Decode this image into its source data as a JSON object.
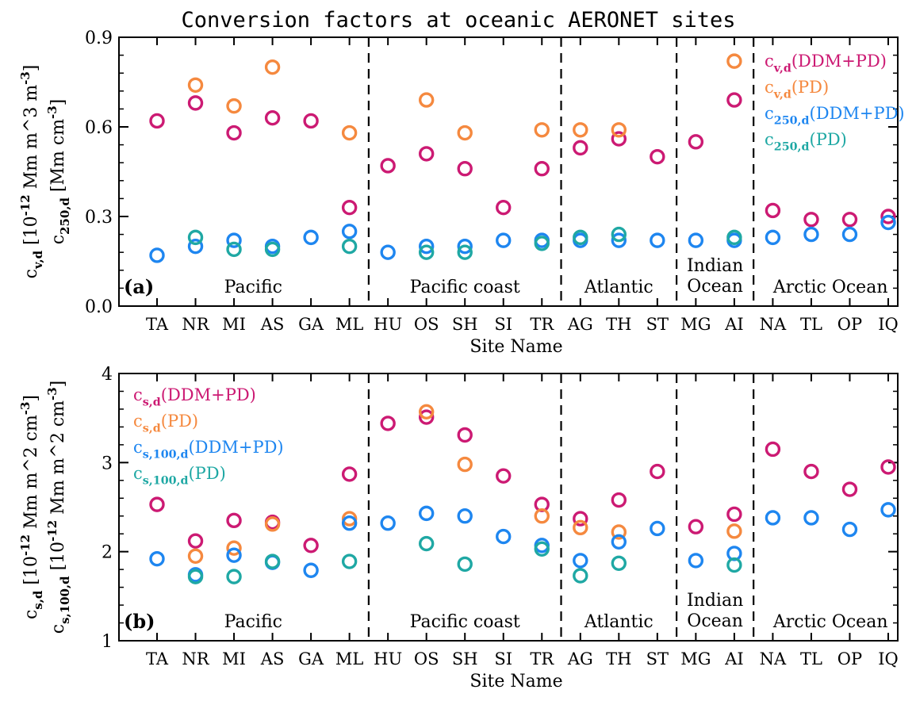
{
  "title": "Conversion factors at oceanic AERONET sites",
  "colors": {
    "ddm_pd": "#cc1a73",
    "pd": "#f5893f",
    "c250_ddm_pd": "#1e86f0",
    "c250_pd": "#1fa8a4",
    "axis": "#000000"
  },
  "chart_data": [
    {
      "type": "scatter",
      "panel_label": "(a)",
      "xlabel": "Site Name",
      "ylabel_outer": "c_{v,d} [10^{-12} Mm m^3 m^{-3}]",
      "ylabel_inner": "c_{250,d} [Mm cm^{-3}]",
      "ylim": [
        0.0,
        0.9
      ],
      "yticks": [
        0.0,
        0.3,
        0.6,
        0.9
      ],
      "ytick_labels": [
        "0.0",
        "0.3",
        "0.6",
        "0.9"
      ],
      "sites": [
        "TA",
        "NR",
        "MI",
        "AS",
        "GA",
        "ML",
        "HU",
        "OS",
        "SH",
        "SI",
        "TR",
        "AG",
        "TH",
        "ST",
        "MG",
        "AI",
        "NA",
        "TL",
        "OP",
        "IQ"
      ],
      "regions": [
        {
          "name": "Pacific",
          "start": 0,
          "end": 5
        },
        {
          "name": "Pacific coast",
          "start": 6,
          "end": 10
        },
        {
          "name": "Atlantic",
          "start": 11,
          "end": 13
        },
        {
          "name": "Indian\nOcean",
          "start": 14,
          "end": 15
        },
        {
          "name": "Arctic Ocean",
          "start": 16,
          "end": 19
        }
      ],
      "legend_position": "top-right",
      "series": [
        {
          "name": "c_{v,d}(DDM+PD)",
          "color_key": "ddm_pd",
          "values": [
            0.62,
            0.68,
            0.58,
            0.63,
            0.62,
            0.33,
            0.47,
            0.51,
            0.46,
            0.33,
            0.46,
            0.53,
            0.56,
            0.5,
            0.55,
            0.69,
            0.32,
            0.29,
            0.29,
            0.3
          ]
        },
        {
          "name": "c_{v,d}(PD)",
          "color_key": "pd",
          "values": [
            null,
            0.74,
            0.67,
            0.8,
            null,
            0.58,
            null,
            0.69,
            0.58,
            null,
            0.59,
            0.59,
            0.59,
            null,
            null,
            0.82,
            null,
            null,
            null,
            null
          ]
        },
        {
          "name": "c_{250,d}(DDM+PD)",
          "color_key": "c250_ddm_pd",
          "values": [
            0.17,
            0.2,
            0.22,
            0.2,
            0.23,
            0.25,
            0.18,
            0.2,
            0.2,
            0.22,
            0.22,
            0.22,
            0.22,
            0.22,
            0.22,
            0.22,
            0.23,
            0.24,
            0.24,
            0.28
          ]
        },
        {
          "name": "c_{250,d}(PD)",
          "color_key": "c250_pd",
          "values": [
            null,
            0.23,
            0.19,
            0.19,
            null,
            0.2,
            null,
            0.18,
            0.18,
            null,
            0.21,
            0.23,
            0.24,
            null,
            null,
            0.23,
            null,
            null,
            null,
            null
          ]
        }
      ]
    },
    {
      "type": "scatter",
      "panel_label": "(b)",
      "xlabel": "Site Name",
      "ylabel_outer": "c_{s,d} [10^{-12} Mm m^2 cm^{-3}]",
      "ylabel_inner": "c_{s,100,d} [10^{-12} Mm m^2 cm^{-3}]",
      "ylim": [
        1,
        4
      ],
      "yticks": [
        1,
        2,
        3,
        4
      ],
      "ytick_labels": [
        "1",
        "2",
        "3",
        "4"
      ],
      "sites": [
        "TA",
        "NR",
        "MI",
        "AS",
        "GA",
        "ML",
        "HU",
        "OS",
        "SH",
        "SI",
        "TR",
        "AG",
        "TH",
        "ST",
        "MG",
        "AI",
        "NA",
        "TL",
        "OP",
        "IQ"
      ],
      "regions": [
        {
          "name": "Pacific",
          "start": 0,
          "end": 5
        },
        {
          "name": "Pacific coast",
          "start": 6,
          "end": 10
        },
        {
          "name": "Atlantic",
          "start": 11,
          "end": 13
        },
        {
          "name": "Indian\nOcean",
          "start": 14,
          "end": 15
        },
        {
          "name": "Arctic Ocean",
          "start": 16,
          "end": 19
        }
      ],
      "legend_position": "top-left",
      "series": [
        {
          "name": "c_{s,d}(DDM+PD)",
          "color_key": "ddm_pd",
          "values": [
            2.53,
            2.12,
            2.35,
            2.33,
            2.07,
            2.87,
            3.44,
            3.51,
            3.31,
            2.85,
            2.53,
            2.37,
            2.58,
            2.9,
            2.28,
            2.42,
            3.15,
            2.9,
            2.7,
            2.95
          ]
        },
        {
          "name": "c_{s,d}(PD)",
          "color_key": "pd",
          "values": [
            null,
            1.95,
            2.04,
            2.31,
            null,
            2.37,
            null,
            3.57,
            2.98,
            null,
            2.4,
            2.27,
            2.22,
            null,
            null,
            2.23,
            null,
            null,
            null,
            null
          ]
        },
        {
          "name": "c_{s,100,d}(DDM+PD)",
          "color_key": "c250_ddm_pd",
          "values": [
            1.92,
            1.74,
            1.96,
            1.88,
            1.79,
            2.32,
            2.32,
            2.43,
            2.4,
            2.17,
            2.07,
            1.9,
            2.11,
            2.26,
            1.9,
            1.98,
            2.38,
            2.38,
            2.25,
            2.47
          ]
        },
        {
          "name": "c_{s,100,d}(PD)",
          "color_key": "c250_pd",
          "values": [
            null,
            1.72,
            1.72,
            1.89,
            null,
            1.89,
            null,
            2.09,
            1.86,
            null,
            2.03,
            1.73,
            1.87,
            null,
            null,
            1.85,
            null,
            null,
            null,
            null
          ]
        }
      ]
    }
  ]
}
